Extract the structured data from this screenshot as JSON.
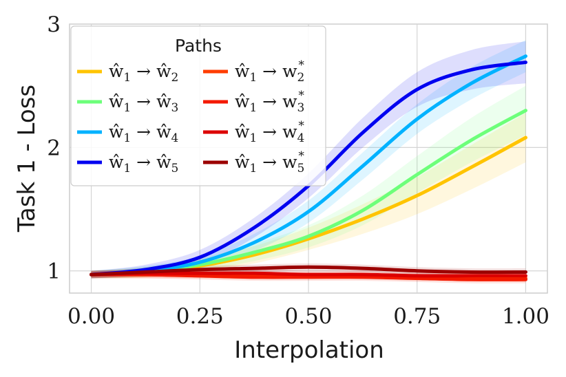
{
  "chart_data": {
    "type": "line",
    "title": "",
    "xlabel": "Interpolation",
    "ylabel": "Task 1 - Loss",
    "xlim": [
      -0.05,
      1.05
    ],
    "ylim": [
      0.82,
      3.0
    ],
    "xticks": [
      0.0,
      0.25,
      0.5,
      0.75,
      1.0
    ],
    "xtick_labels": [
      "0.00",
      "0.25",
      "0.50",
      "0.75",
      "1.00"
    ],
    "yticks": [
      1,
      2,
      3
    ],
    "ytick_labels": [
      "1",
      "2",
      "3"
    ],
    "grid": true,
    "legend": {
      "title": "Paths",
      "placement": "top-left",
      "columns": 2
    },
    "x": [
      0.0,
      0.125,
      0.25,
      0.375,
      0.5,
      0.625,
      0.75,
      0.875,
      1.0
    ],
    "series": [
      {
        "name": "ŵ1 → ŵ2",
        "name_parts": [
          "ŵ",
          "1",
          " → ŵ",
          "2",
          ""
        ],
        "color": "#ffc400",
        "values": [
          0.97,
          0.99,
          1.04,
          1.13,
          1.26,
          1.42,
          1.61,
          1.84,
          2.08
        ],
        "band": [
          0.03,
          0.04,
          0.05,
          0.07,
          0.09,
          0.12,
          0.15,
          0.18,
          0.2
        ]
      },
      {
        "name": "ŵ1 → ŵ3",
        "name_parts": [
          "ŵ",
          "1",
          " → ŵ",
          "3",
          ""
        ],
        "color": "#6dff7a",
        "values": [
          0.97,
          0.99,
          1.05,
          1.15,
          1.28,
          1.49,
          1.78,
          2.06,
          2.3
        ],
        "band": [
          0.03,
          0.04,
          0.05,
          0.07,
          0.09,
          0.12,
          0.15,
          0.18,
          0.2
        ]
      },
      {
        "name": "ŵ1 → ŵ4",
        "name_parts": [
          "ŵ",
          "1",
          " → ŵ",
          "4",
          ""
        ],
        "color": "#00b2ff",
        "values": [
          0.97,
          1.0,
          1.07,
          1.23,
          1.48,
          1.85,
          2.23,
          2.52,
          2.74
        ],
        "band": [
          0.03,
          0.04,
          0.05,
          0.07,
          0.09,
          0.11,
          0.12,
          0.13,
          0.13
        ]
      },
      {
        "name": "ŵ1 → ŵ5",
        "name_parts": [
          "ŵ",
          "1",
          " → ŵ",
          "5",
          ""
        ],
        "color": "#0000f0",
        "values": [
          0.97,
          1.01,
          1.11,
          1.35,
          1.69,
          2.12,
          2.47,
          2.63,
          2.69
        ],
        "band": [
          0.03,
          0.04,
          0.06,
          0.08,
          0.1,
          0.12,
          0.14,
          0.16,
          0.17
        ]
      },
      {
        "name": "ŵ1 → w2*",
        "name_parts": [
          "ŵ",
          "1",
          " → w",
          "2",
          "*"
        ],
        "color": "#ff3d00",
        "values": [
          0.97,
          0.97,
          0.97,
          0.96,
          0.96,
          0.96,
          0.95,
          0.95,
          0.94
        ],
        "band": [
          0.03,
          0.03,
          0.03,
          0.03,
          0.03,
          0.03,
          0.03,
          0.03,
          0.03
        ]
      },
      {
        "name": "ŵ1 → w3*",
        "name_parts": [
          "ŵ",
          "1",
          " → w",
          "3",
          "*"
        ],
        "color": "#f41a00",
        "values": [
          0.97,
          0.97,
          0.96,
          0.95,
          0.95,
          0.95,
          0.94,
          0.93,
          0.93
        ],
        "band": [
          0.03,
          0.03,
          0.03,
          0.03,
          0.03,
          0.03,
          0.03,
          0.03,
          0.03
        ]
      },
      {
        "name": "ŵ1 → w4*",
        "name_parts": [
          "ŵ",
          "1",
          " → w",
          "4",
          "*"
        ],
        "color": "#dc0000",
        "values": [
          0.97,
          0.98,
          0.98,
          0.98,
          0.97,
          0.97,
          0.96,
          0.96,
          0.96
        ],
        "band": [
          0.03,
          0.03,
          0.03,
          0.03,
          0.03,
          0.03,
          0.03,
          0.03,
          0.03
        ]
      },
      {
        "name": "ŵ1 → w5*",
        "name_parts": [
          "ŵ",
          "1",
          " → w",
          "5",
          "*"
        ],
        "color": "#9b0000",
        "values": [
          0.97,
          0.99,
          1.01,
          1.02,
          1.03,
          1.02,
          1.0,
          0.99,
          0.99
        ],
        "band": [
          0.03,
          0.03,
          0.03,
          0.03,
          0.03,
          0.03,
          0.03,
          0.03,
          0.03
        ]
      }
    ]
  }
}
